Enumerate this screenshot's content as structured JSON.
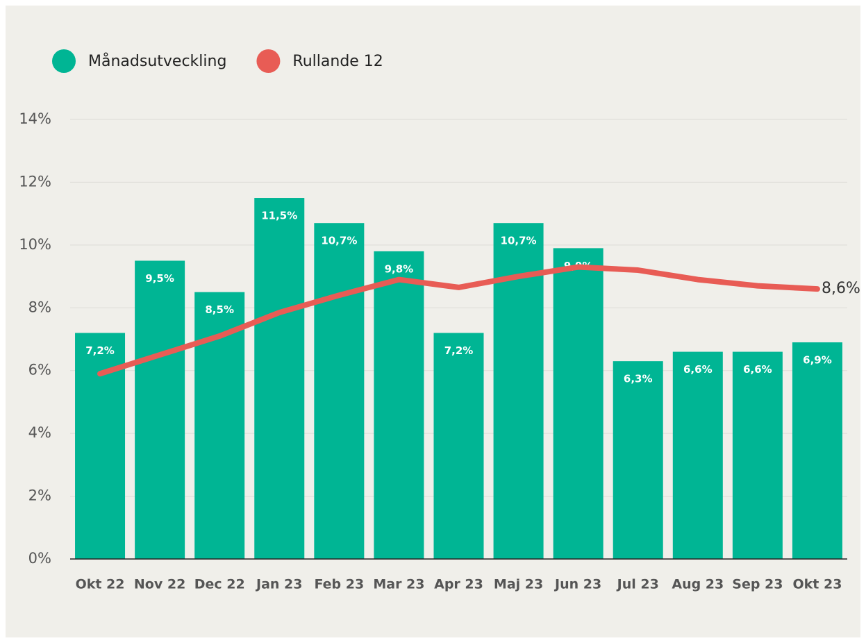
{
  "chart_data": {
    "type": "bar",
    "categories": [
      "Okt 22",
      "Nov 22",
      "Dec 22",
      "Jan 23",
      "Feb 23",
      "Mar 23",
      "Apr 23",
      "Maj 23",
      "Jun 23",
      "Jul 23",
      "Aug 23",
      "Sep 23",
      "Okt 23"
    ],
    "series": [
      {
        "name": "Månadsutveckling",
        "type": "bar",
        "color": "#00b594",
        "values": [
          7.2,
          9.5,
          8.5,
          11.5,
          10.7,
          9.8,
          7.2,
          10.7,
          9.9,
          6.3,
          6.6,
          6.6,
          6.9
        ],
        "value_labels": [
          "7,2%",
          "9,5%",
          "8,5%",
          "11,5%",
          "10,7%",
          "9,8%",
          "7,2%",
          "10,7%",
          "9,9%",
          "6,3%",
          "6,6%",
          "6,6%",
          "6,9%"
        ]
      },
      {
        "name": "Rullande 12",
        "type": "line",
        "color": "#e85c55",
        "values": [
          5.9,
          6.5,
          7.1,
          7.85,
          8.4,
          8.9,
          8.65,
          9.0,
          9.3,
          9.2,
          8.9,
          8.7,
          8.6
        ],
        "value_labels": [
          null,
          null,
          null,
          null,
          null,
          null,
          null,
          null,
          null,
          null,
          null,
          null,
          "8,6%"
        ]
      }
    ],
    "ylim": [
      0,
      14
    ],
    "yticks": [
      {
        "value": 0,
        "label": "0%"
      },
      {
        "value": 2,
        "label": "2%"
      },
      {
        "value": 4,
        "label": "4%"
      },
      {
        "value": 6,
        "label": "6%"
      },
      {
        "value": 8,
        "label": "8%"
      },
      {
        "value": 10,
        "label": "10%"
      },
      {
        "value": 12,
        "label": "12%"
      },
      {
        "value": 14,
        "label": "14%"
      }
    ],
    "grid": true,
    "legend": "top-left"
  }
}
